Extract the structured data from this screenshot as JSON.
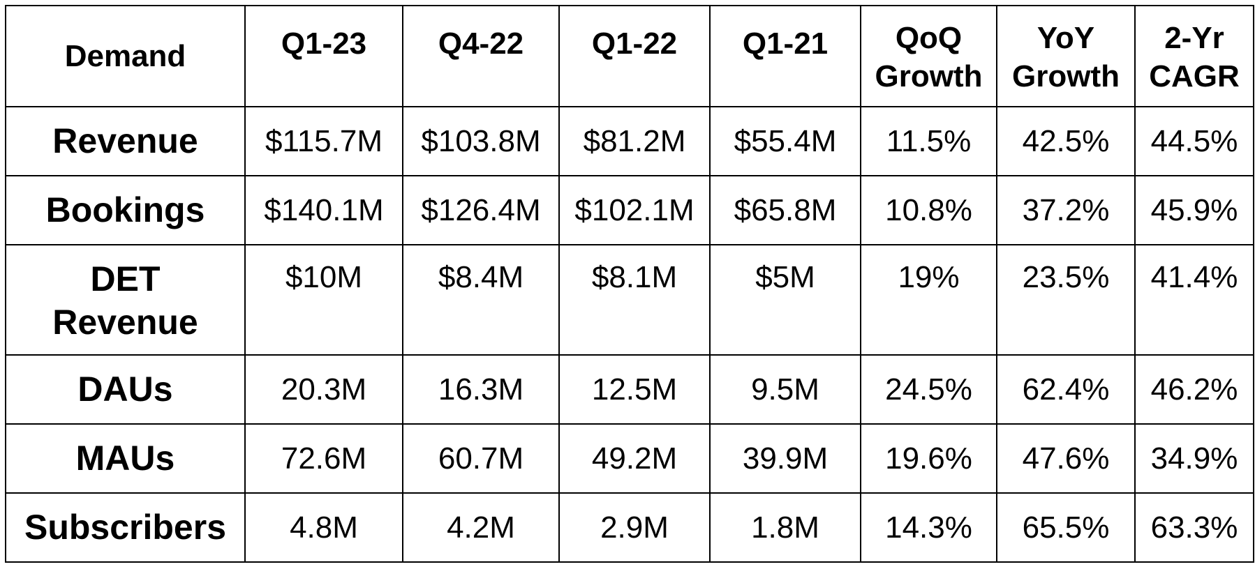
{
  "table": {
    "headers": [
      "Demand",
      "Q1-23",
      "Q4-22",
      "Q1-22",
      "Q1-21",
      "QoQ Growth",
      "YoY Growth",
      "2-Yr CAGR"
    ],
    "header_lines": [
      [
        "Demand"
      ],
      [
        "Q1-23"
      ],
      [
        "Q4-22"
      ],
      [
        "Q1-22"
      ],
      [
        "Q1-21"
      ],
      [
        "QoQ",
        "Growth"
      ],
      [
        "YoY",
        "Growth"
      ],
      [
        "2-Yr",
        "CAGR"
      ]
    ],
    "rows": [
      {
        "label_lines": [
          "Revenue"
        ],
        "cells": [
          "$115.7M",
          "$103.8M",
          "$81.2M",
          "$55.4M",
          "11.5%",
          "42.5%",
          "44.5%"
        ]
      },
      {
        "label_lines": [
          "Bookings"
        ],
        "cells": [
          "$140.1M",
          "$126.4M",
          "$102.1M",
          "$65.8M",
          "10.8%",
          "37.2%",
          "45.9%"
        ]
      },
      {
        "label_lines": [
          "DET",
          "Revenue"
        ],
        "cells": [
          "$10M",
          "$8.4M",
          "$8.1M",
          "$5M",
          "19%",
          "23.5%",
          "41.4%"
        ]
      },
      {
        "label_lines": [
          "DAUs"
        ],
        "cells": [
          "20.3M",
          "16.3M",
          "12.5M",
          "9.5M",
          "24.5%",
          "62.4%",
          "46.2%"
        ]
      },
      {
        "label_lines": [
          "MAUs"
        ],
        "cells": [
          "72.6M",
          "60.7M",
          "49.2M",
          "39.9M",
          "19.6%",
          "47.6%",
          "34.9%"
        ]
      },
      {
        "label_lines": [
          "Subscribers"
        ],
        "cells": [
          "4.8M",
          "4.2M",
          "2.9M",
          "1.8M",
          "14.3%",
          "65.5%",
          "63.3%"
        ]
      }
    ]
  }
}
